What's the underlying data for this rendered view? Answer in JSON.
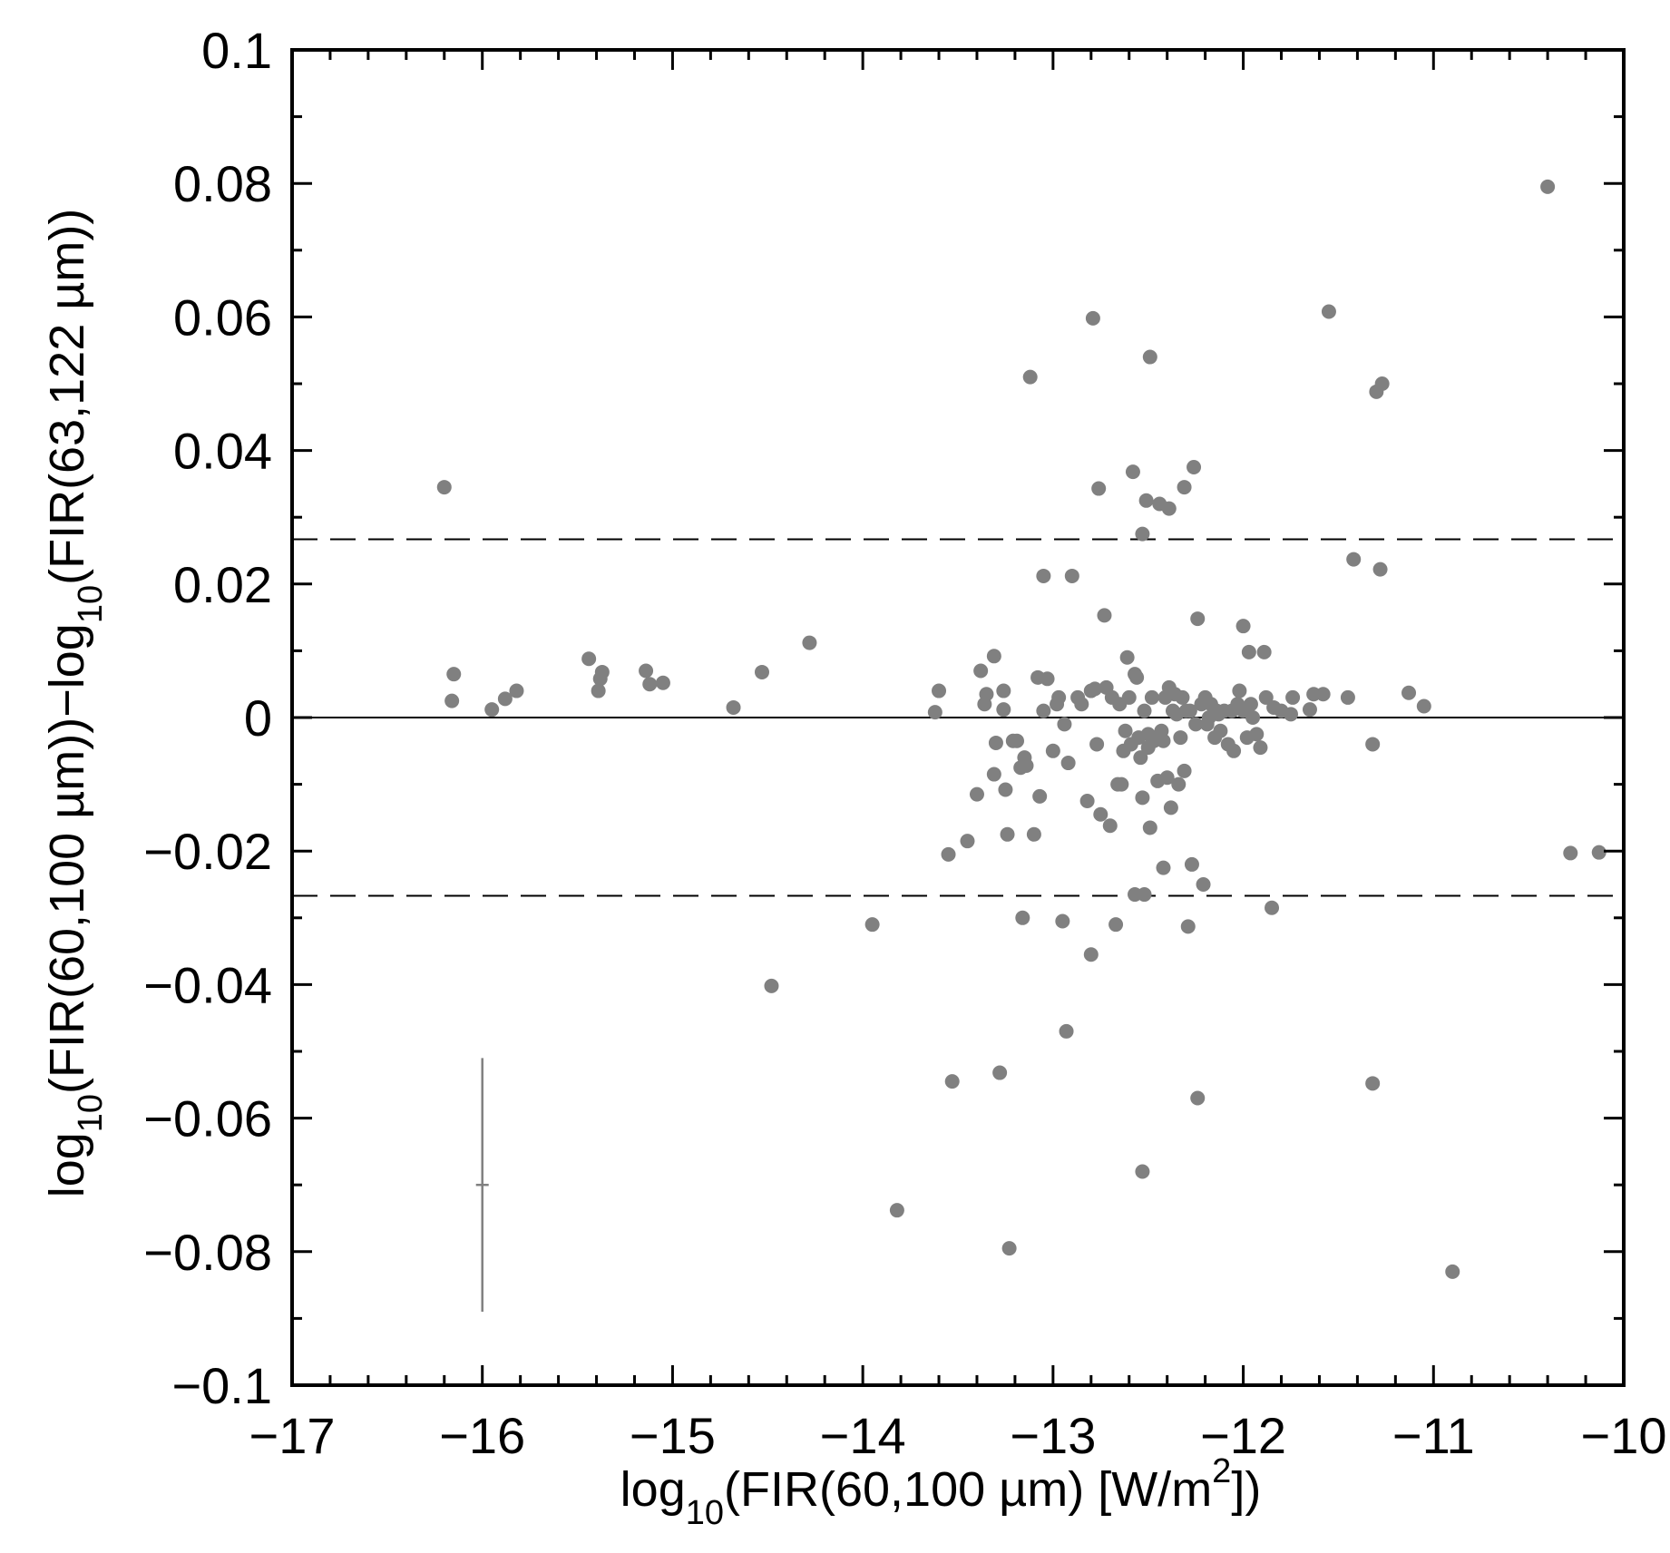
{
  "chart_data": {
    "type": "scatter",
    "xlabel": {
      "pre": "log",
      "sub": "10",
      "main": "(FIR(60,100 µm) [W/m",
      "sup": "2",
      "post": "])"
    },
    "ylabel": {
      "pre1": "log",
      "sub1": "10",
      "mid": "(FIR(60,100 µm))−log",
      "sub2": "10",
      "post": "(FIR(63,122 µm))"
    },
    "xlim": [
      -17,
      -10
    ],
    "ylim": [
      -0.1,
      0.1
    ],
    "x_ticks": [
      -17,
      -16,
      -15,
      -14,
      -13,
      -12,
      -11,
      -10
    ],
    "x_tick_labels": [
      "−17",
      "−16",
      "−15",
      "−14",
      "−13",
      "−12",
      "−11",
      "−10"
    ],
    "y_ticks": [
      -0.1,
      -0.08,
      -0.06,
      -0.04,
      -0.02,
      0,
      0.02,
      0.04,
      0.06,
      0.08,
      0.1
    ],
    "y_tick_labels": [
      "−0.1",
      "−0.08",
      "−0.06",
      "−0.04",
      "−0.02",
      "0",
      "0.02",
      "0.04",
      "0.06",
      "0.08",
      "0.1"
    ],
    "reference_lines": [
      {
        "y": 0,
        "style": "solid"
      },
      {
        "y": 0.0267,
        "style": "dashed"
      },
      {
        "y": -0.0267,
        "style": "dashed"
      }
    ],
    "error_bar": {
      "x": -16.0,
      "y": -0.07,
      "yerr": 0.019
    },
    "point_color": "#808080",
    "points": [
      [
        -16.2,
        0.0345
      ],
      [
        -16.15,
        0.0065
      ],
      [
        -16.16,
        0.0025
      ],
      [
        -15.95,
        0.0012
      ],
      [
        -15.88,
        0.0028
      ],
      [
        -15.82,
        0.004
      ],
      [
        -15.44,
        0.0088
      ],
      [
        -15.37,
        0.0068
      ],
      [
        -15.38,
        0.0058
      ],
      [
        -15.39,
        0.004
      ],
      [
        -15.14,
        0.007
      ],
      [
        -15.12,
        0.005
      ],
      [
        -15.05,
        0.0052
      ],
      [
        -14.68,
        0.0015
      ],
      [
        -14.53,
        0.0068
      ],
      [
        -14.48,
        -0.0402
      ],
      [
        -14.28,
        0.0112
      ],
      [
        -13.95,
        -0.031
      ],
      [
        -13.82,
        -0.0738
      ],
      [
        -13.62,
        0.0008
      ],
      [
        -13.6,
        0.004
      ],
      [
        -13.55,
        -0.0205
      ],
      [
        -13.53,
        -0.0545
      ],
      [
        -13.45,
        -0.0185
      ],
      [
        -13.4,
        -0.0115
      ],
      [
        -13.38,
        0.007
      ],
      [
        -13.36,
        0.002
      ],
      [
        -13.35,
        0.0035
      ],
      [
        -13.31,
        0.0092
      ],
      [
        -13.31,
        -0.0085
      ],
      [
        -13.3,
        -0.0038
      ],
      [
        -13.28,
        -0.0532
      ],
      [
        -13.26,
        0.004
      ],
      [
        -13.26,
        0.0012
      ],
      [
        -13.25,
        -0.0108
      ],
      [
        -13.24,
        -0.0175
      ],
      [
        -13.23,
        -0.0795
      ],
      [
        -13.21,
        -0.0035
      ],
      [
        -13.19,
        -0.0035
      ],
      [
        -13.17,
        -0.0075
      ],
      [
        -13.16,
        -0.03
      ],
      [
        -13.15,
        -0.006
      ],
      [
        -13.14,
        -0.0072
      ],
      [
        -13.12,
        0.051
      ],
      [
        -13.1,
        -0.0175
      ],
      [
        -13.08,
        0.006
      ],
      [
        -13.07,
        -0.0118
      ],
      [
        -13.05,
        0.0212
      ],
      [
        -13.05,
        0.001
      ],
      [
        -13.03,
        0.0058
      ],
      [
        -13.0,
        -0.005
      ],
      [
        -12.98,
        0.002
      ],
      [
        -12.97,
        0.003
      ],
      [
        -12.95,
        -0.0305
      ],
      [
        -12.94,
        -0.001
      ],
      [
        -12.93,
        -0.047
      ],
      [
        -12.92,
        -0.0068
      ],
      [
        -12.9,
        0.0212
      ],
      [
        -12.87,
        0.003
      ],
      [
        -12.85,
        0.002
      ],
      [
        -12.82,
        -0.0125
      ],
      [
        -12.8,
        0.004
      ],
      [
        -12.8,
        -0.0355
      ],
      [
        -12.79,
        0.0598
      ],
      [
        -12.78,
        0.0043
      ],
      [
        -12.77,
        -0.004
      ],
      [
        -12.76,
        0.0343
      ],
      [
        -12.75,
        -0.0145
      ],
      [
        -12.73,
        0.0153
      ],
      [
        -12.72,
        0.0045
      ],
      [
        -12.7,
        -0.0162
      ],
      [
        -12.69,
        0.003
      ],
      [
        -12.67,
        -0.031
      ],
      [
        -12.66,
        -0.01
      ],
      [
        -12.65,
        0.002
      ],
      [
        -12.64,
        -0.01
      ],
      [
        -12.63,
        -0.005
      ],
      [
        -12.62,
        -0.002
      ],
      [
        -12.61,
        0.009
      ],
      [
        -12.6,
        0.003
      ],
      [
        -12.59,
        -0.004
      ],
      [
        -12.58,
        0.0368
      ],
      [
        -12.57,
        0.0065
      ],
      [
        -12.57,
        -0.0265
      ],
      [
        -12.56,
        0.006
      ],
      [
        -12.55,
        -0.003
      ],
      [
        -12.54,
        -0.006
      ],
      [
        -12.53,
        0.0275
      ],
      [
        -12.53,
        -0.012
      ],
      [
        -12.53,
        -0.068
      ],
      [
        -12.52,
        0.001
      ],
      [
        -12.52,
        -0.0265
      ],
      [
        -12.51,
        0.0325
      ],
      [
        -12.5,
        -0.0025
      ],
      [
        -12.5,
        -0.0045
      ],
      [
        -12.49,
        0.054
      ],
      [
        -12.49,
        -0.0165
      ],
      [
        -12.48,
        0.003
      ],
      [
        -12.47,
        -0.0035
      ],
      [
        -12.45,
        -0.0095
      ],
      [
        -12.44,
        0.032
      ],
      [
        -12.43,
        -0.002
      ],
      [
        -12.42,
        -0.0035
      ],
      [
        -12.42,
        -0.0225
      ],
      [
        -12.41,
        0.003
      ],
      [
        -12.4,
        -0.009
      ],
      [
        -12.39,
        0.0045
      ],
      [
        -12.39,
        0.0313
      ],
      [
        -12.38,
        -0.0135
      ],
      [
        -12.37,
        0.001
      ],
      [
        -12.36,
        0.0035
      ],
      [
        -12.35,
        0.0005
      ],
      [
        -12.34,
        -0.01
      ],
      [
        -12.33,
        -0.003
      ],
      [
        -12.32,
        0.003
      ],
      [
        -12.31,
        0.0345
      ],
      [
        -12.31,
        -0.008
      ],
      [
        -12.3,
        0.001
      ],
      [
        -12.29,
        -0.0313
      ],
      [
        -12.28,
        0.001
      ],
      [
        -12.27,
        -0.022
      ],
      [
        -12.26,
        0.0375
      ],
      [
        -12.25,
        -0.001
      ],
      [
        -12.24,
        0.0148
      ],
      [
        -12.24,
        -0.057
      ],
      [
        -12.22,
        0.002
      ],
      [
        -12.21,
        -0.025
      ],
      [
        -12.2,
        0.003
      ],
      [
        -12.19,
        -0.001
      ],
      [
        -12.18,
        0.0
      ],
      [
        -12.17,
        0.002
      ],
      [
        -12.15,
        -0.003
      ],
      [
        -12.14,
        0.001
      ],
      [
        -12.13,
        0.0005
      ],
      [
        -12.12,
        -0.002
      ],
      [
        -12.1,
        0.001
      ],
      [
        -12.08,
        -0.004
      ],
      [
        -12.06,
        0.001
      ],
      [
        -12.05,
        -0.005
      ],
      [
        -12.03,
        0.002
      ],
      [
        -12.02,
        0.004
      ],
      [
        -12.0,
        0.0137
      ],
      [
        -12.0,
        0.001
      ],
      [
        -11.98,
        -0.003
      ],
      [
        -11.97,
        0.0098
      ],
      [
        -11.96,
        0.002
      ],
      [
        -11.95,
        0.0
      ],
      [
        -11.93,
        -0.0025
      ],
      [
        -11.91,
        -0.0045
      ],
      [
        -11.89,
        0.0098
      ],
      [
        -11.88,
        0.003
      ],
      [
        -11.85,
        -0.0285
      ],
      [
        -11.84,
        0.0015
      ],
      [
        -11.8,
        0.001
      ],
      [
        -11.75,
        0.0005
      ],
      [
        -11.74,
        0.003
      ],
      [
        -11.65,
        0.0012
      ],
      [
        -11.63,
        0.0035
      ],
      [
        -11.58,
        0.0035
      ],
      [
        -11.55,
        0.0608
      ],
      [
        -11.45,
        0.003
      ],
      [
        -11.42,
        0.0237
      ],
      [
        -11.32,
        -0.004
      ],
      [
        -11.32,
        -0.0548
      ],
      [
        -11.3,
        0.0488
      ],
      [
        -11.28,
        0.0222
      ],
      [
        -11.27,
        0.05
      ],
      [
        -11.13,
        0.0037
      ],
      [
        -11.05,
        0.0017
      ],
      [
        -10.9,
        -0.083
      ],
      [
        -10.4,
        0.0795
      ],
      [
        -10.28,
        -0.0203
      ],
      [
        -10.13,
        -0.0202
      ]
    ]
  }
}
